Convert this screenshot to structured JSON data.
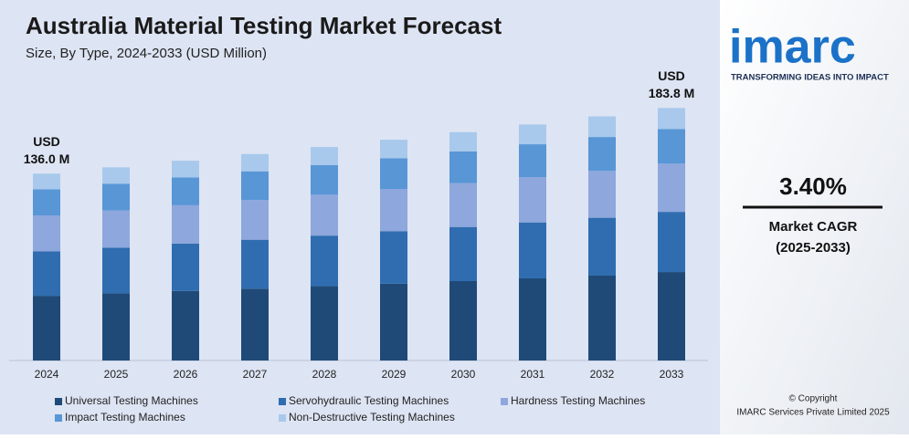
{
  "chart_data": {
    "type": "stacked_bar",
    "title": "Australia Material Testing Market Forecast",
    "subtitle": "Size, By Type, 2024-2033 (USD Million)",
    "categories": [
      "2024",
      "2025",
      "2026",
      "2027",
      "2028",
      "2029",
      "2030",
      "2031",
      "2032",
      "2033"
    ],
    "series": [
      {
        "name": "Universal Testing Machines",
        "color": "#1f4a78",
        "values": [
          47.1,
          48.9,
          50.6,
          52.3,
          54.1,
          55.9,
          57.8,
          59.8,
          61.8,
          64.4
        ]
      },
      {
        "name": "Servohydraulic Testing Machines",
        "color": "#2f6db0",
        "values": [
          32.3,
          33.3,
          34.5,
          35.6,
          36.8,
          38.1,
          39.4,
          40.7,
          42.1,
          43.8
        ]
      },
      {
        "name": "Hardness Testing Machines",
        "color": "#8ea7dc",
        "values": [
          26.2,
          27.0,
          27.9,
          28.9,
          29.8,
          30.9,
          31.9,
          33.0,
          34.1,
          35.1
        ]
      },
      {
        "name": "Impact Testing Machines",
        "color": "#5896d6",
        "values": [
          19.0,
          19.5,
          20.2,
          20.9,
          21.6,
          22.3,
          23.1,
          23.9,
          24.7,
          25.2
        ]
      },
      {
        "name": "Non-Destructive Testing Machines",
        "color": "#a8c9ec",
        "values": [
          11.4,
          11.9,
          12.2,
          12.6,
          13.1,
          13.5,
          14.0,
          14.4,
          15.0,
          15.3
        ]
      }
    ],
    "ylim": [
      0,
      190
    ],
    "annotations": [
      {
        "category": "2024",
        "value": 136.0,
        "lines": [
          "USD",
          "136.0 M"
        ]
      },
      {
        "category": "2033",
        "value": 183.8,
        "lines": [
          "USD",
          "183.8 M"
        ]
      }
    ]
  },
  "sidebar": {
    "logo": "imarc",
    "tagline": "TRANSFORMING IDEAS INTO IMPACT",
    "cagr": "3.40%",
    "cagr_label": "Market CAGR",
    "cagr_period": "(2025-2033)",
    "copyright": "© Copyright",
    "company": "IMARC Services Private Limited 2025"
  }
}
